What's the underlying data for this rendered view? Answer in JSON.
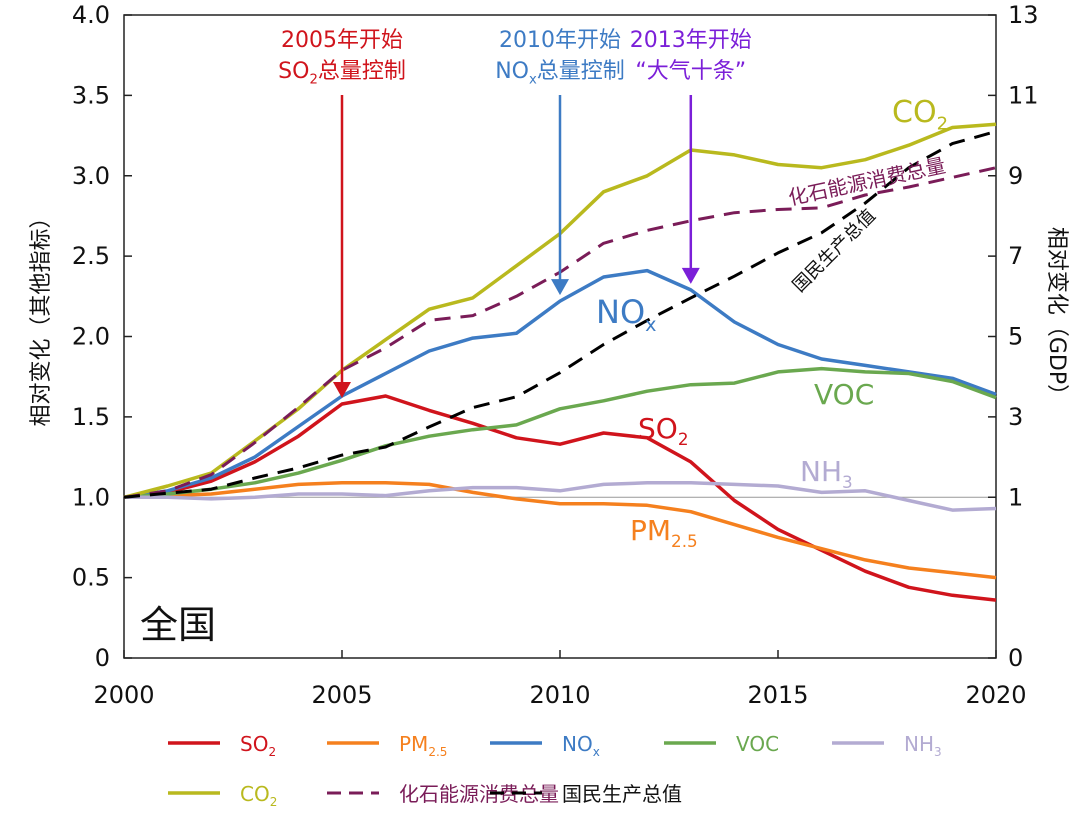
{
  "chart_data": {
    "type": "line",
    "region_label": "全国",
    "ylabel_left": "相对变化（其他指标）",
    "ylabel_right": "相对变化（GDP）",
    "xlim": [
      2000,
      2020
    ],
    "ylim_left": [
      0,
      4.0
    ],
    "ylim_right": [
      0,
      13
    ],
    "x_ticks": [
      "2000",
      "2005",
      "2010",
      "2015",
      "2020"
    ],
    "y_ticks_left": [
      "0",
      "0.5",
      "1.0",
      "1.5",
      "2.0",
      "2.5",
      "3.0",
      "3.5",
      "4.0"
    ],
    "y_ticks_right": [
      "0",
      "1",
      "3",
      "5",
      "7",
      "9",
      "11",
      "13"
    ],
    "right_axis_note": "right axis: 0–1 shares left scale 0–1.0, above 1 each 2 units spans 0.5 left units",
    "reference_line": 1.0,
    "grid": false,
    "legend_placement": "bottom",
    "x": [
      2000,
      2001,
      2002,
      2003,
      2004,
      2005,
      2006,
      2007,
      2008,
      2009,
      2010,
      2011,
      2012,
      2013,
      2014,
      2015,
      2016,
      2017,
      2018,
      2019,
      2020
    ],
    "series": [
      {
        "name": "SO2",
        "label_main": "SO",
        "label_sub": "2",
        "color": "#d0141c",
        "style": "solid",
        "axis": "left",
        "values": [
          1.0,
          1.03,
          1.1,
          1.22,
          1.38,
          1.58,
          1.63,
          1.54,
          1.46,
          1.37,
          1.33,
          1.4,
          1.37,
          1.22,
          0.98,
          0.8,
          0.67,
          0.54,
          0.44,
          0.39,
          0.36
        ]
      },
      {
        "name": "PM2.5",
        "label_main": "PM",
        "label_sub": "2.5",
        "color": "#f5801e",
        "style": "solid",
        "axis": "left",
        "values": [
          1.0,
          1.01,
          1.02,
          1.05,
          1.08,
          1.09,
          1.09,
          1.08,
          1.03,
          0.99,
          0.96,
          0.96,
          0.95,
          0.91,
          0.83,
          0.75,
          0.68,
          0.61,
          0.56,
          0.53,
          0.5
        ]
      },
      {
        "name": "NOx",
        "label_main": "NO",
        "label_sub": "x",
        "color": "#3d7bc4",
        "style": "solid",
        "axis": "left",
        "values": [
          1.0,
          1.04,
          1.12,
          1.25,
          1.44,
          1.63,
          1.77,
          1.91,
          1.99,
          2.02,
          2.22,
          2.37,
          2.41,
          2.29,
          2.09,
          1.95,
          1.86,
          1.82,
          1.78,
          1.74,
          1.64
        ]
      },
      {
        "name": "VOC",
        "label_main": "VOC",
        "label_sub": "",
        "color": "#6aa84f",
        "style": "solid",
        "axis": "left",
        "values": [
          1.0,
          1.02,
          1.05,
          1.09,
          1.15,
          1.23,
          1.32,
          1.38,
          1.42,
          1.45,
          1.55,
          1.6,
          1.66,
          1.7,
          1.71,
          1.78,
          1.8,
          1.78,
          1.77,
          1.72,
          1.62
        ]
      },
      {
        "name": "NH3",
        "label_main": "NH",
        "label_sub": "3",
        "color": "#b3abd2",
        "style": "solid",
        "axis": "left",
        "values": [
          1.0,
          1.0,
          0.99,
          1.0,
          1.02,
          1.02,
          1.01,
          1.04,
          1.06,
          1.06,
          1.04,
          1.08,
          1.09,
          1.09,
          1.08,
          1.07,
          1.03,
          1.04,
          0.98,
          0.92,
          0.93
        ]
      },
      {
        "name": "CO2",
        "label_main": "CO",
        "label_sub": "2",
        "color": "#b9b91e",
        "style": "solid",
        "axis": "left",
        "values": [
          1.0,
          1.07,
          1.15,
          1.35,
          1.55,
          1.79,
          1.98,
          2.17,
          2.24,
          2.44,
          2.64,
          2.9,
          3.0,
          3.16,
          3.13,
          3.07,
          3.05,
          3.1,
          3.19,
          3.3,
          3.32
        ]
      },
      {
        "name": "化石能源消费总量",
        "label_main": "化石能源消费总量",
        "label_sub": "",
        "color": "#7a1c58",
        "style": "dashed",
        "axis": "left",
        "values": [
          1.0,
          1.04,
          1.14,
          1.34,
          1.56,
          1.79,
          1.93,
          2.1,
          2.13,
          2.25,
          2.4,
          2.58,
          2.66,
          2.72,
          2.77,
          2.79,
          2.8,
          2.88,
          2.93,
          2.99,
          3.05
        ]
      },
      {
        "name": "国民生产总值",
        "label_main": "国民生产总值",
        "label_sub": "",
        "color": "#000000",
        "style": "dashed",
        "axis": "right",
        "values": [
          1.0,
          1.1,
          1.2,
          1.48,
          1.73,
          2.05,
          2.25,
          2.75,
          3.23,
          3.5,
          4.1,
          4.8,
          5.4,
          5.96,
          6.5,
          7.08,
          7.58,
          8.32,
          9.2,
          9.8,
          10.1
        ]
      }
    ],
    "annotations": [
      {
        "year": 2005,
        "line1": "2005年开始",
        "line2_main": "SO",
        "line2_sub": "2",
        "line2_rest": "总量控制",
        "color": "#d0141c",
        "target": 1.58
      },
      {
        "year": 2010,
        "line1": "2010年开始",
        "line2_main": "NO",
        "line2_sub": "x",
        "line2_rest": "总量控制",
        "color": "#3d7bc4",
        "target": 2.22
      },
      {
        "year": 2013,
        "line1": "2013年开始",
        "line2_main": "“大气十条”",
        "line2_sub": "",
        "line2_rest": "",
        "color": "#7b1fd8",
        "target": 2.29
      }
    ]
  }
}
